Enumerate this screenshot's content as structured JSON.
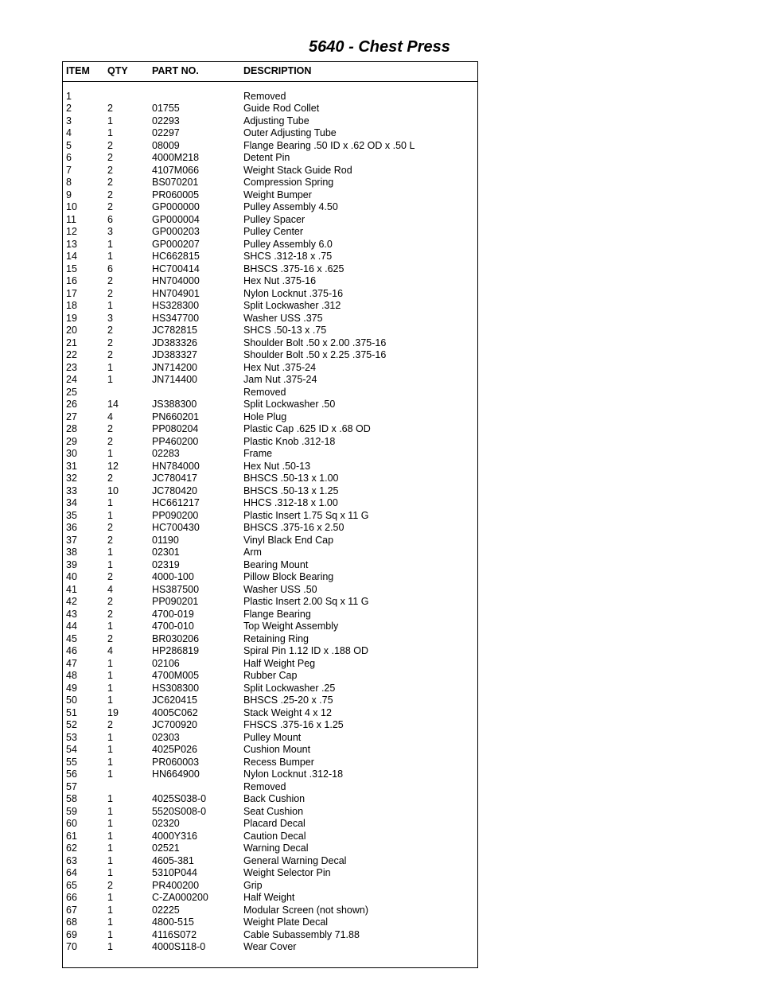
{
  "title": "5640 - Chest Press",
  "headers": {
    "item": "ITEM",
    "qty": "QTY",
    "part": "PART NO.",
    "desc": "DESCRIPTION"
  },
  "rows": [
    {
      "item": "1",
      "qty": "",
      "part": "",
      "desc": "Removed"
    },
    {
      "item": "2",
      "qty": "2",
      "part": "01755",
      "desc": "Guide Rod Collet"
    },
    {
      "item": "3",
      "qty": "1",
      "part": "02293",
      "desc": "Adjusting Tube"
    },
    {
      "item": "4",
      "qty": "1",
      "part": "02297",
      "desc": "Outer Adjusting Tube"
    },
    {
      "item": "5",
      "qty": "2",
      "part": "08009",
      "desc": "Flange Bearing .50 ID x .62 OD x .50 L"
    },
    {
      "item": "6",
      "qty": "2",
      "part": "4000M218",
      "desc": "Detent Pin"
    },
    {
      "item": "7",
      "qty": "2",
      "part": "4107M066",
      "desc": "Weight Stack Guide Rod"
    },
    {
      "item": "8",
      "qty": "2",
      "part": "BS070201",
      "desc": "Compression Spring"
    },
    {
      "item": "9",
      "qty": "2",
      "part": "PR060005",
      "desc": "Weight Bumper"
    },
    {
      "item": "10",
      "qty": "2",
      "part": "GP000000",
      "desc": "Pulley Assembly 4.50"
    },
    {
      "item": "11",
      "qty": "6",
      "part": "GP000004",
      "desc": "Pulley Spacer"
    },
    {
      "item": "12",
      "qty": "3",
      "part": "GP000203",
      "desc": "Pulley Center"
    },
    {
      "item": "13",
      "qty": "1",
      "part": "GP000207",
      "desc": "Pulley Assembly 6.0"
    },
    {
      "item": "14",
      "qty": "1",
      "part": "HC662815",
      "desc": "SHCS .312-18 x .75"
    },
    {
      "item": "15",
      "qty": "6",
      "part": "HC700414",
      "desc": "BHSCS .375-16 x .625"
    },
    {
      "item": "16",
      "qty": "2",
      "part": "HN704000",
      "desc": "Hex Nut .375-16"
    },
    {
      "item": "17",
      "qty": "2",
      "part": "HN704901",
      "desc": "Nylon Locknut .375-16"
    },
    {
      "item": "18",
      "qty": "1",
      "part": "HS328300",
      "desc": "Split Lockwasher .312"
    },
    {
      "item": "19",
      "qty": "3",
      "part": "HS347700",
      "desc": "Washer USS .375"
    },
    {
      "item": "20",
      "qty": "2",
      "part": "JC782815",
      "desc": "SHCS .50-13 x .75"
    },
    {
      "item": "21",
      "qty": "2",
      "part": "JD383326",
      "desc": "Shoulder Bolt .50 x 2.00  .375-16"
    },
    {
      "item": "22",
      "qty": "2",
      "part": "JD383327",
      "desc": "Shoulder Bolt .50 x 2.25  .375-16"
    },
    {
      "item": "23",
      "qty": "1",
      "part": "JN714200",
      "desc": "Hex Nut .375-24"
    },
    {
      "item": "24",
      "qty": "1",
      "part": "JN714400",
      "desc": "Jam Nut .375-24"
    },
    {
      "item": "25",
      "qty": "",
      "part": "",
      "desc": "Removed"
    },
    {
      "item": "26",
      "qty": "14",
      "part": "JS388300",
      "desc": "Split Lockwasher .50"
    },
    {
      "item": "27",
      "qty": "4",
      "part": "PN660201",
      "desc": "Hole Plug"
    },
    {
      "item": "28",
      "qty": "2",
      "part": "PP080204",
      "desc": "Plastic Cap .625 ID x .68 OD"
    },
    {
      "item": "29",
      "qty": "2",
      "part": "PP460200",
      "desc": "Plastic Knob .312-18"
    },
    {
      "item": "30",
      "qty": "1",
      "part": "02283",
      "desc": "Frame"
    },
    {
      "item": "31",
      "qty": "12",
      "part": "HN784000",
      "desc": "Hex Nut .50-13"
    },
    {
      "item": "32",
      "qty": "2",
      "part": "JC780417",
      "desc": "BHSCS .50-13 x 1.00"
    },
    {
      "item": "33",
      "qty": "10",
      "part": "JC780420",
      "desc": "BHSCS .50-13 x 1.25"
    },
    {
      "item": "34",
      "qty": "1",
      "part": "HC661217",
      "desc": "HHCS .312-18 x 1.00"
    },
    {
      "item": "35",
      "qty": "1",
      "part": "PP090200",
      "desc": "Plastic Insert 1.75 Sq x 11 G"
    },
    {
      "item": "36",
      "qty": "2",
      "part": "HC700430",
      "desc": "BHSCS .375-16 x 2.50"
    },
    {
      "item": "37",
      "qty": "2",
      "part": "01190",
      "desc": "Vinyl Black End Cap"
    },
    {
      "item": "38",
      "qty": "1",
      "part": "02301",
      "desc": "Arm"
    },
    {
      "item": "39",
      "qty": "1",
      "part": "02319",
      "desc": "Bearing Mount"
    },
    {
      "item": "40",
      "qty": "2",
      "part": "4000-100",
      "desc": "Pillow Block Bearing"
    },
    {
      "item": "41",
      "qty": "4",
      "part": "HS387500",
      "desc": "Washer USS .50"
    },
    {
      "item": "42",
      "qty": "2",
      "part": "PP090201",
      "desc": "Plastic Insert 2.00 Sq x 11 G"
    },
    {
      "item": "43",
      "qty": "2",
      "part": "4700-019",
      "desc": "Flange Bearing"
    },
    {
      "item": "44",
      "qty": "1",
      "part": "4700-010",
      "desc": "Top Weight Assembly"
    },
    {
      "item": "45",
      "qty": "2",
      "part": "BR030206",
      "desc": "Retaining Ring"
    },
    {
      "item": "46",
      "qty": "4",
      "part": "HP286819",
      "desc": "Spiral Pin 1.12 ID  x .188 OD"
    },
    {
      "item": "47",
      "qty": "1",
      "part": "02106",
      "desc": "Half Weight Peg"
    },
    {
      "item": "48",
      "qty": "1",
      "part": "4700M005",
      "desc": "Rubber Cap"
    },
    {
      "item": "49",
      "qty": "1",
      "part": "HS308300",
      "desc": "Split Lockwasher .25"
    },
    {
      "item": "50",
      "qty": "1",
      "part": "JC620415",
      "desc": "BHSCS .25-20 x .75"
    },
    {
      "item": "51",
      "qty": "19",
      "part": "4005C062",
      "desc": "Stack Weight 4 x 12"
    },
    {
      "item": "52",
      "qty": "2",
      "part": "JC700920",
      "desc": "FHSCS .375-16 x 1.25"
    },
    {
      "item": "53",
      "qty": "1",
      "part": "02303",
      "desc": "Pulley Mount"
    },
    {
      "item": "54",
      "qty": "1",
      "part": "4025P026",
      "desc": "Cushion Mount"
    },
    {
      "item": "55",
      "qty": "1",
      "part": "PR060003",
      "desc": "Recess Bumper"
    },
    {
      "item": "56",
      "qty": "1",
      "part": "HN664900",
      "desc": "Nylon Locknut .312-18"
    },
    {
      "item": "57",
      "qty": "",
      "part": "",
      "desc": "Removed"
    },
    {
      "item": "58",
      "qty": "1",
      "part": "4025S038-0",
      "desc": "Back Cushion"
    },
    {
      "item": "59",
      "qty": "1",
      "part": "5520S008-0",
      "desc": "Seat Cushion"
    },
    {
      "item": "60",
      "qty": "1",
      "part": "02320",
      "desc": "Placard Decal"
    },
    {
      "item": "61",
      "qty": "1",
      "part": "4000Y316",
      "desc": "Caution Decal"
    },
    {
      "item": "62",
      "qty": "1",
      "part": "02521",
      "desc": "Warning Decal"
    },
    {
      "item": "63",
      "qty": "1",
      "part": "4605-381",
      "desc": "General Warning Decal"
    },
    {
      "item": "64",
      "qty": "1",
      "part": "5310P044",
      "desc": "Weight Selector Pin"
    },
    {
      "item": "65",
      "qty": "2",
      "part": "PR400200",
      "desc": "Grip"
    },
    {
      "item": "66",
      "qty": "1",
      "part": "C-ZA000200",
      "desc": "Half Weight"
    },
    {
      "item": "67",
      "qty": "1",
      "part": "02225",
      "desc": "Modular Screen (not shown)"
    },
    {
      "item": "68",
      "qty": "1",
      "part": "4800-515",
      "desc": "Weight Plate Decal"
    },
    {
      "item": "69",
      "qty": "1",
      "part": "4116S072",
      "desc": "Cable Subassembly  71.88"
    },
    {
      "item": "70",
      "qty": "1",
      "part": "4000S118-0",
      "desc": "Wear Cover"
    }
  ]
}
